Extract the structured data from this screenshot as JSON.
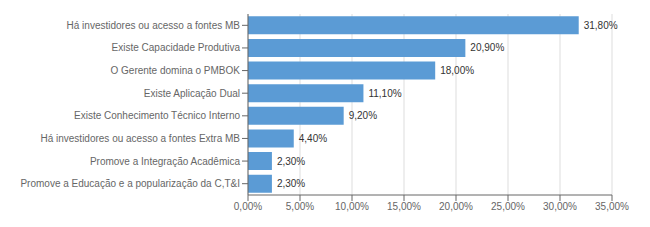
{
  "chart_data": {
    "type": "bar",
    "orientation": "horizontal",
    "categories": [
      "Promove a Educação e a popularização da C,T&I",
      "Promove a Integração Acadêmica",
      "Há investidores ou acesso a fontes Extra MB",
      "Existe Conhecimento Técnico Interno",
      "Existe Aplicação Dual",
      "O Gerente domina o PMBOK",
      "Existe Capacidade Produtiva",
      "Há investidores ou acesso a fontes MB"
    ],
    "values": [
      2.3,
      2.3,
      4.4,
      9.2,
      11.1,
      18.0,
      20.9,
      31.8
    ],
    "value_labels": [
      "2,30%",
      "2,30%",
      "4,40%",
      "9,20%",
      "11,10%",
      "18,00%",
      "20,90%",
      "31,80%"
    ],
    "color": "#5B9BD5",
    "xlim": [
      0,
      35
    ],
    "xticks": [
      {
        "value": 0,
        "label": "0,00%"
      },
      {
        "value": 5,
        "label": "5,00%"
      },
      {
        "value": 10,
        "label": "10,00%"
      },
      {
        "value": 15,
        "label": "15,00%"
      },
      {
        "value": 20,
        "label": "20,00%"
      },
      {
        "value": 25,
        "label": "25,00%"
      },
      {
        "value": 30,
        "label": "30,00%"
      },
      {
        "value": 35,
        "label": "35,00%"
      }
    ],
    "grid": true,
    "data_labels": true
  }
}
